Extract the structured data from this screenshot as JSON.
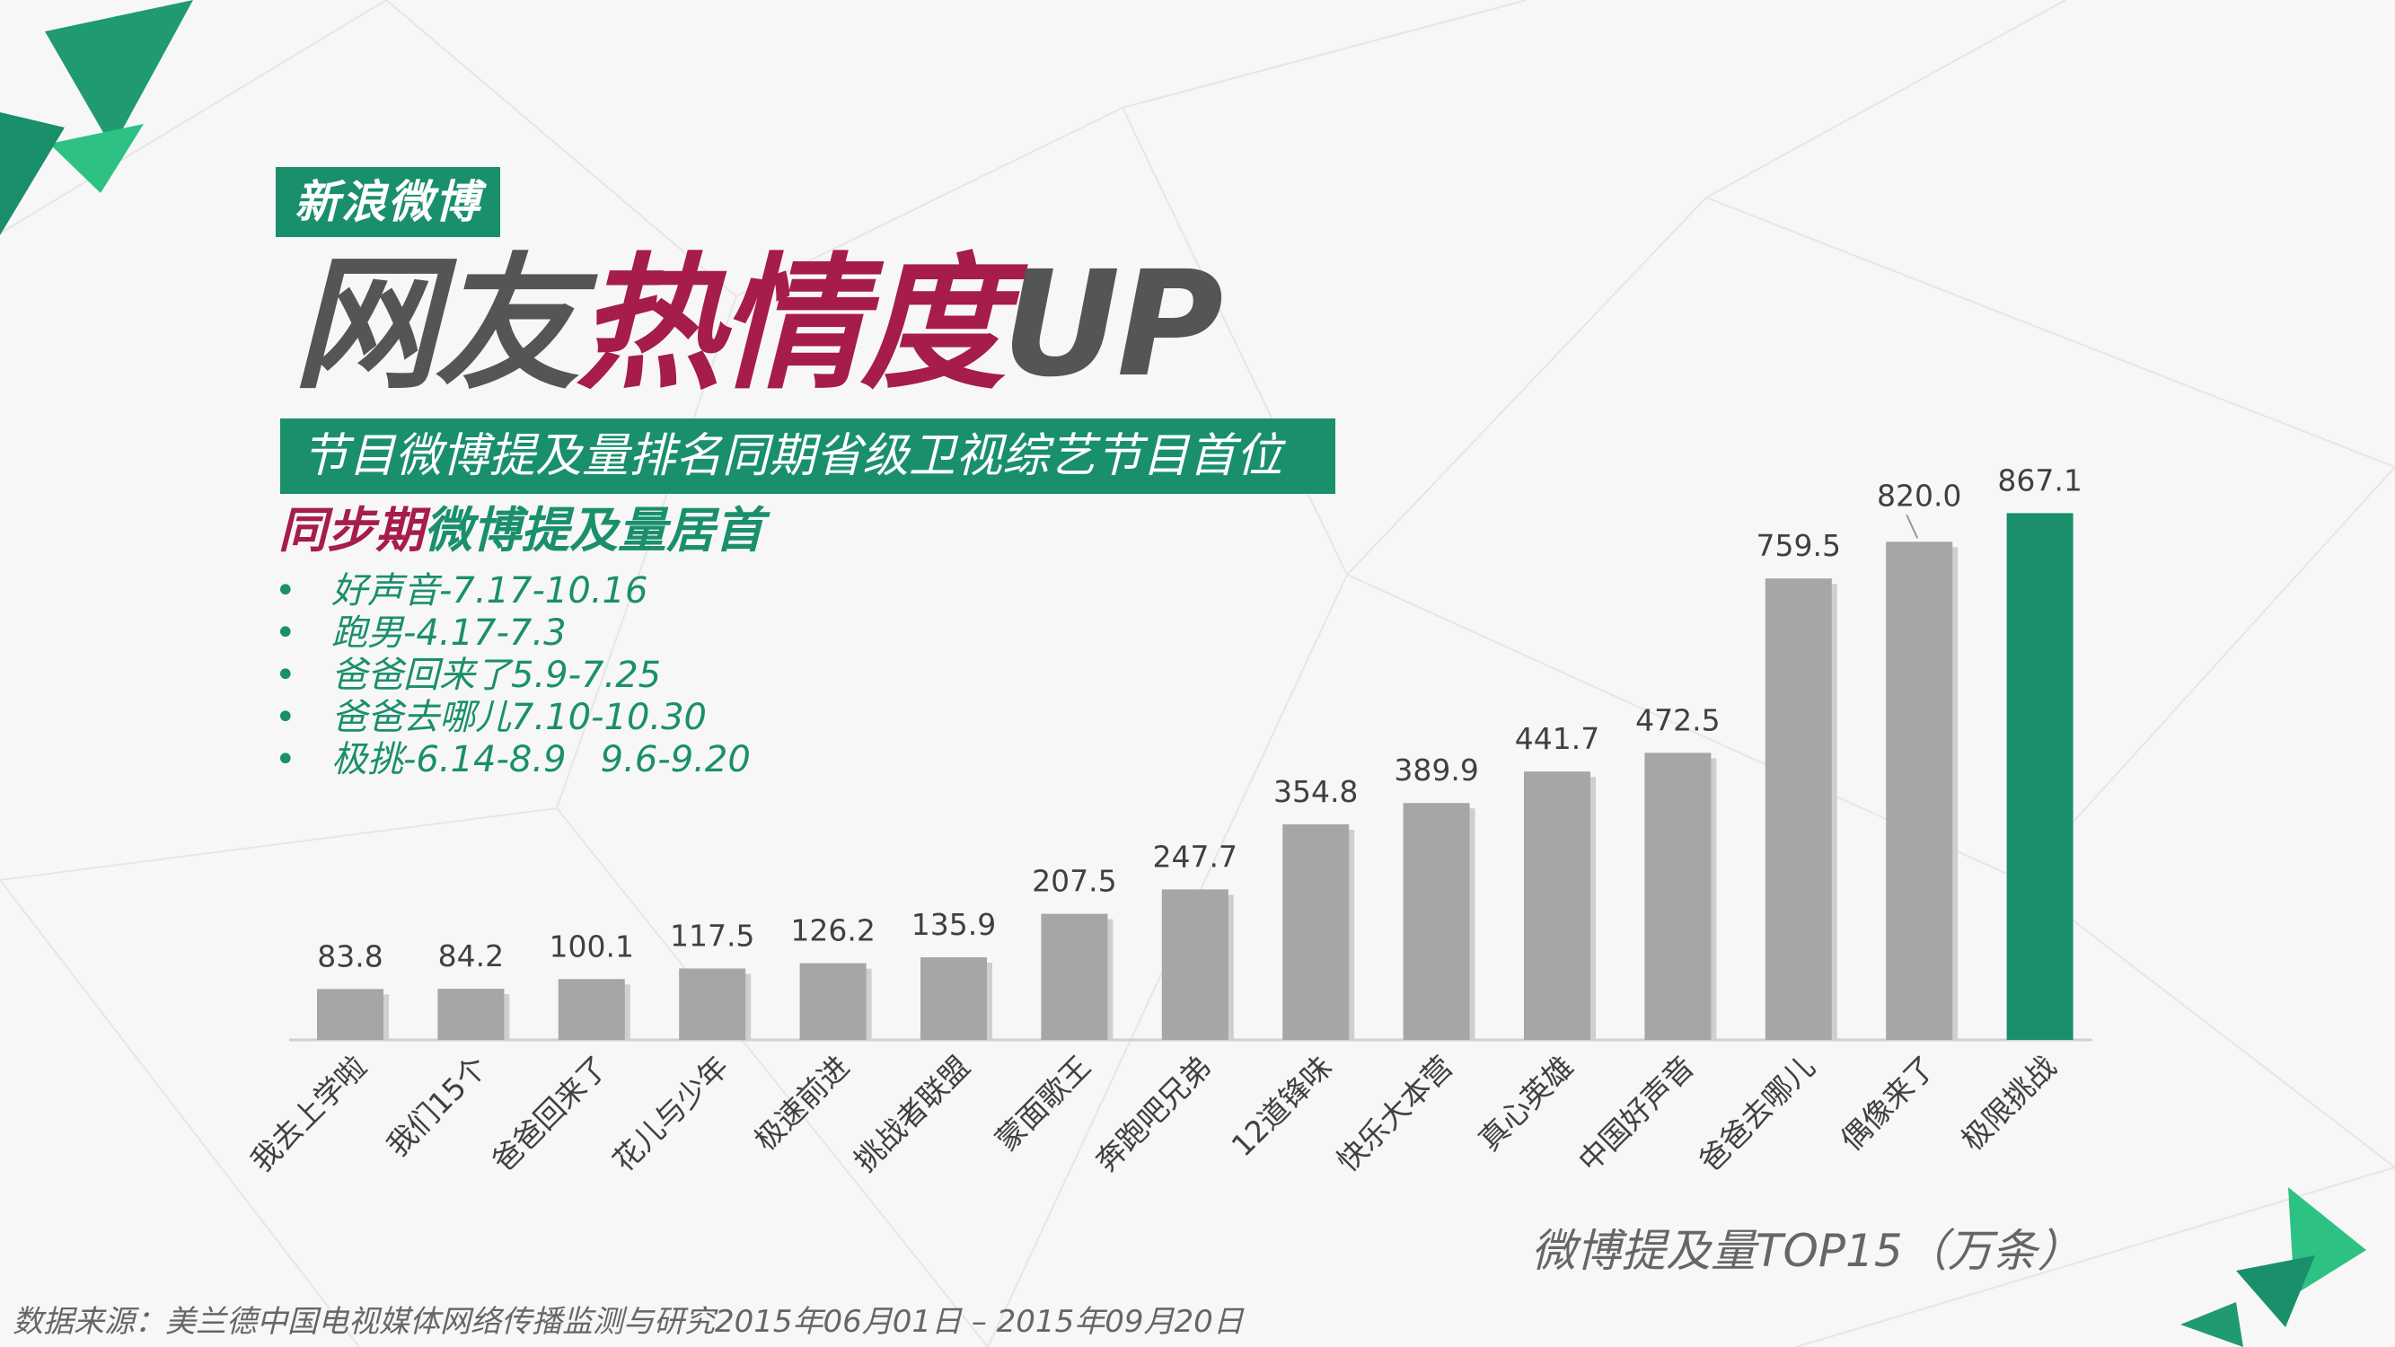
{
  "brand": {
    "badge": "新浪微博"
  },
  "headline": {
    "part1": "网友",
    "part2": "热情度",
    "part3": "UP"
  },
  "subtitle_bar": "节目微博提及量排名同期省级卫视综艺节目首位",
  "sync_heading": {
    "red": "同步期",
    "green": "微博提及量居首"
  },
  "bullet_char": "•",
  "periods": [
    "好声音-7.17-10.16",
    "跑男-4.17-7.3",
    "爸爸回来了5.9-7.25",
    "爸爸去哪儿7.10-10.30",
    "极挑-6.14-8.9   9.6-9.20"
  ],
  "colors": {
    "accent_green": "#1a8f6c",
    "accent_red": "#a61c4a",
    "bar_grey": "#a6a6a6",
    "highlight_bar": "#1a8f6c",
    "title_grey": "#555555"
  },
  "chart_data": {
    "type": "bar",
    "title": "微博提及量TOP15（万条）",
    "categories": [
      "我去上学啦",
      "我们15个",
      "爸爸回来了",
      "花儿与少年",
      "极速前进",
      "挑战者联盟",
      "蒙面歌王",
      "奔跑吧兄弟",
      "12道锋味",
      "快乐大本营",
      "真心英雄",
      "中国好声音",
      "爸爸去哪儿",
      "偶像来了",
      "极限挑战"
    ],
    "values": [
      83.8,
      84.2,
      100.1,
      117.5,
      126.2,
      135.9,
      207.5,
      247.7,
      354.8,
      389.9,
      441.7,
      472.5,
      759.5,
      820.0,
      867.1
    ],
    "value_labels": [
      "83.8",
      "84.2",
      "100.1",
      "117.5",
      "126.2",
      "135.9",
      "207.5",
      "247.7",
      "354.8",
      "389.9",
      "441.7",
      "472.5",
      "759.5",
      "820.0",
      "867.1"
    ],
    "highlight_index": 14,
    "ylim": [
      0,
      1000
    ],
    "grid": false,
    "xlabel": "",
    "ylabel": ""
  },
  "footer": {
    "source": "数据来源：美兰德中国电视媒体网络传播监测与研究2015年06月01日 – 2015年09月20日"
  }
}
